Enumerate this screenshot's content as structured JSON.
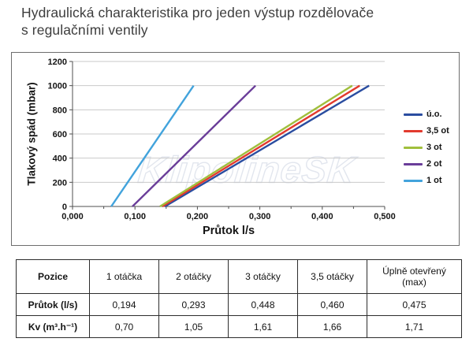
{
  "title": {
    "line1": "Hydraulická charakteristika pro jeden výstup rozdělovače",
    "line2": "s regulačními ventily"
  },
  "watermark": {
    "text": "KlipolineSK"
  },
  "chart_data": {
    "type": "line",
    "title": "",
    "xlabel": "Průtok l/s",
    "ylabel": "Tlakový spád (mbar)",
    "xlim": [
      0,
      0.5
    ],
    "ylim": [
      0,
      1200
    ],
    "x_tick_values": [
      0,
      0.1,
      0.2,
      0.3,
      0.4,
      0.5
    ],
    "x_tick_labels": [
      "0,000",
      "0,100",
      "0,200",
      "0,300",
      "0,400",
      "0,500"
    ],
    "x_minor_tick_values": [
      0.05,
      0.15,
      0.25,
      0.35,
      0.45
    ],
    "y_tick_values": [
      0,
      200,
      400,
      600,
      800,
      1000,
      1200
    ],
    "y_tick_labels": [
      "0",
      "200",
      "400",
      "600",
      "800",
      "1000",
      "1200"
    ],
    "grid": "horizontal-only",
    "legend_position": "right",
    "series": [
      {
        "name": "ú.o.",
        "color": "#2a4da0",
        "points": [
          [
            0.148,
            0
          ],
          [
            0.475,
            1000
          ]
        ]
      },
      {
        "name": "3,5 ot",
        "color": "#e23a2e",
        "points": [
          [
            0.144,
            0
          ],
          [
            0.46,
            1000
          ]
        ]
      },
      {
        "name": "3 ot",
        "color": "#a0bf3c",
        "points": [
          [
            0.14,
            0
          ],
          [
            0.448,
            1000
          ]
        ]
      },
      {
        "name": "2 ot",
        "color": "#6a3d99",
        "points": [
          [
            0.096,
            0
          ],
          [
            0.293,
            1000
          ]
        ]
      },
      {
        "name": "1 ot",
        "color": "#42a3dc",
        "points": [
          [
            0.062,
            0
          ],
          [
            0.194,
            1000
          ]
        ]
      }
    ]
  },
  "table": {
    "header": [
      "Pozice",
      "1 otáčka",
      "2 otáčky",
      "3 otáčky",
      "3,5 otáčky",
      "Úplně otevřený (max)"
    ],
    "rows": [
      [
        "Průtok (l/s)",
        "0,194",
        "0,293",
        "0,448",
        "0,460",
        "0,475"
      ],
      [
        "Kv (m³.h⁻¹)",
        "0,70",
        "1,05",
        "1,61",
        "1,66",
        "1,71"
      ]
    ]
  }
}
